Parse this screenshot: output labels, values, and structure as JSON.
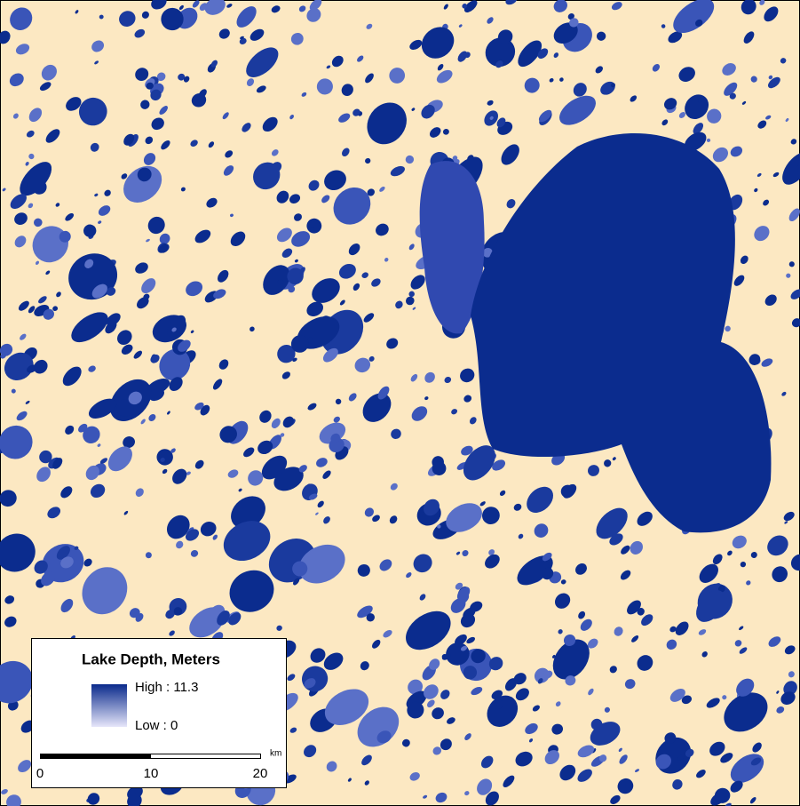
{
  "legend": {
    "title": "Lake Depth, Meters",
    "high": "High : 11.3",
    "low": "Low : 0"
  },
  "scale_bar": {
    "labels": [
      "0",
      "10",
      "20"
    ],
    "unit": "km"
  }
}
